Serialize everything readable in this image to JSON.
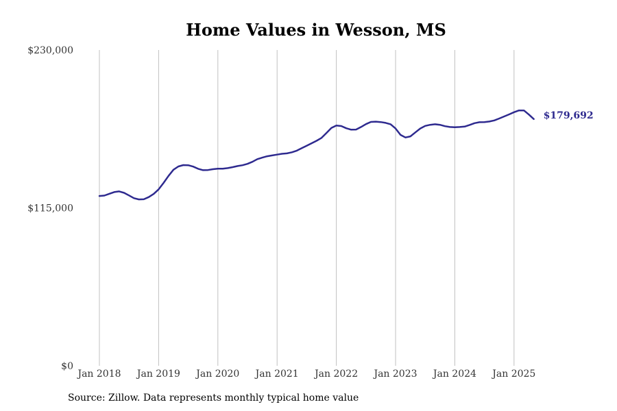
{
  "chart_data": {
    "type": "line",
    "title": "Home Values in Wesson, MS",
    "xlabel": "",
    "ylabel": "",
    "ylim": [
      0,
      230000
    ],
    "y_ticks": [
      {
        "value": 0,
        "label": "$0"
      },
      {
        "value": 115000,
        "label": "$115,000"
      },
      {
        "value": 230000,
        "label": "$230,000"
      }
    ],
    "x_ticks": [
      {
        "value": "2018-01",
        "label": "Jan 2018"
      },
      {
        "value": "2019-01",
        "label": "Jan 2019"
      },
      {
        "value": "2020-01",
        "label": "Jan 2020"
      },
      {
        "value": "2021-01",
        "label": "Jan 2021"
      },
      {
        "value": "2022-01",
        "label": "Jan 2022"
      },
      {
        "value": "2023-01",
        "label": "Jan 2023"
      },
      {
        "value": "2024-01",
        "label": "Jan 2024"
      },
      {
        "value": "2025-01",
        "label": "Jan 2025"
      }
    ],
    "grid": {
      "vertical": true,
      "horizontal": false
    },
    "line_color": "#2e2a8f",
    "grid_color": "#c0c0c0",
    "end_label": "$179,692",
    "series": [
      {
        "points": [
          [
            "2018-01",
            123700
          ],
          [
            "2018-02",
            124000
          ],
          [
            "2018-03",
            125300
          ],
          [
            "2018-04",
            126500
          ],
          [
            "2018-05",
            127000
          ],
          [
            "2018-06",
            126000
          ],
          [
            "2018-07",
            124100
          ],
          [
            "2018-08",
            122100
          ],
          [
            "2018-09",
            121200
          ],
          [
            "2018-10",
            121300
          ],
          [
            "2018-11",
            122900
          ],
          [
            "2018-12",
            125200
          ],
          [
            "2019-01",
            128500
          ],
          [
            "2019-02",
            133200
          ],
          [
            "2019-03",
            138300
          ],
          [
            "2019-04",
            142800
          ],
          [
            "2019-05",
            145200
          ],
          [
            "2019-06",
            146200
          ],
          [
            "2019-07",
            146100
          ],
          [
            "2019-08",
            145100
          ],
          [
            "2019-09",
            143500
          ],
          [
            "2019-10",
            142500
          ],
          [
            "2019-11",
            142600
          ],
          [
            "2019-12",
            143200
          ],
          [
            "2020-01",
            143600
          ],
          [
            "2020-02",
            143600
          ],
          [
            "2020-03",
            144000
          ],
          [
            "2020-04",
            144700
          ],
          [
            "2020-05",
            145500
          ],
          [
            "2020-06",
            146100
          ],
          [
            "2020-07",
            147100
          ],
          [
            "2020-08",
            148600
          ],
          [
            "2020-09",
            150500
          ],
          [
            "2020-10",
            151600
          ],
          [
            "2020-11",
            152600
          ],
          [
            "2020-12",
            153200
          ],
          [
            "2021-01",
            153800
          ],
          [
            "2021-02",
            154400
          ],
          [
            "2021-03",
            154700
          ],
          [
            "2021-04",
            155500
          ],
          [
            "2021-05",
            156700
          ],
          [
            "2021-06",
            158500
          ],
          [
            "2021-07",
            160300
          ],
          [
            "2021-08",
            162100
          ],
          [
            "2021-09",
            163900
          ],
          [
            "2021-10",
            166000
          ],
          [
            "2021-11",
            169600
          ],
          [
            "2021-12",
            173200
          ],
          [
            "2022-01",
            175000
          ],
          [
            "2022-02",
            174600
          ],
          [
            "2022-03",
            173000
          ],
          [
            "2022-04",
            172000
          ],
          [
            "2022-05",
            172100
          ],
          [
            "2022-06",
            173900
          ],
          [
            "2022-07",
            176000
          ],
          [
            "2022-08",
            177600
          ],
          [
            "2022-09",
            177800
          ],
          [
            "2022-10",
            177500
          ],
          [
            "2022-11",
            176900
          ],
          [
            "2022-12",
            175900
          ],
          [
            "2023-01",
            172800
          ],
          [
            "2023-02",
            168200
          ],
          [
            "2023-03",
            166300
          ],
          [
            "2023-04",
            167100
          ],
          [
            "2023-05",
            170000
          ],
          [
            "2023-06",
            172800
          ],
          [
            "2023-07",
            174700
          ],
          [
            "2023-08",
            175500
          ],
          [
            "2023-09",
            175900
          ],
          [
            "2023-10",
            175500
          ],
          [
            "2023-11",
            174500
          ],
          [
            "2023-12",
            173900
          ],
          [
            "2024-01",
            173700
          ],
          [
            "2024-02",
            173900
          ],
          [
            "2024-03",
            174200
          ],
          [
            "2024-04",
            175400
          ],
          [
            "2024-05",
            176700
          ],
          [
            "2024-06",
            177400
          ],
          [
            "2024-07",
            177500
          ],
          [
            "2024-08",
            177900
          ],
          [
            "2024-09",
            178700
          ],
          [
            "2024-10",
            180100
          ],
          [
            "2024-11",
            181600
          ],
          [
            "2024-12",
            183100
          ],
          [
            "2025-01",
            184700
          ],
          [
            "2025-02",
            186000
          ],
          [
            "2025-03",
            186000
          ],
          [
            "2025-04",
            183000
          ],
          [
            "2025-05",
            179692
          ]
        ]
      }
    ]
  },
  "source_text": "Source: Zillow. Data represents monthly typical home value"
}
